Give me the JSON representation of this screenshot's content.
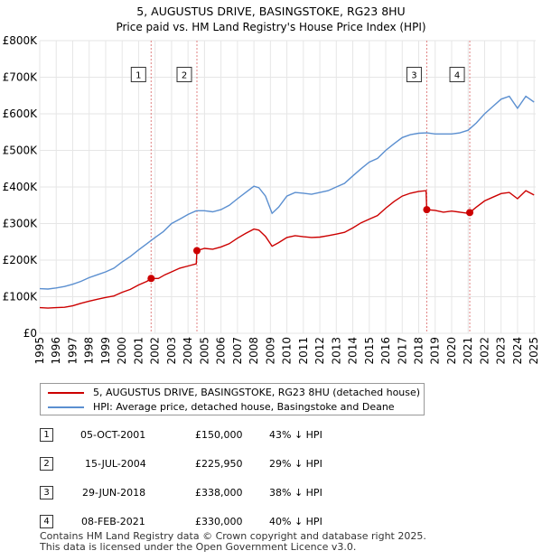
{
  "chart_data": {
    "type": "line",
    "title": "5, AUGUSTUS DRIVE, BASINGSTOKE, RG23 8HU",
    "subtitle": "Price paid vs. HM Land Registry's House Price Index (HPI)",
    "xlim": [
      1995,
      2025.1
    ],
    "ylim": [
      0,
      800000
    ],
    "x_ticks": [
      1995,
      1996,
      1997,
      1998,
      1999,
      2000,
      2001,
      2002,
      2003,
      2004,
      2005,
      2006,
      2007,
      2008,
      2009,
      2010,
      2011,
      2012,
      2013,
      2014,
      2015,
      2016,
      2017,
      2018,
      2019,
      2020,
      2021,
      2022,
      2023,
      2024,
      2025
    ],
    "y_ticks": [
      {
        "value": 0,
        "label": "£0"
      },
      {
        "value": 100000,
        "label": "£100K"
      },
      {
        "value": 200000,
        "label": "£200K"
      },
      {
        "value": 300000,
        "label": "£300K"
      },
      {
        "value": 400000,
        "label": "£400K"
      },
      {
        "value": 500000,
        "label": "£500K"
      },
      {
        "value": 600000,
        "label": "£600K"
      },
      {
        "value": 700000,
        "label": "£700K"
      },
      {
        "value": 800000,
        "label": "£800K"
      }
    ],
    "shaded_periods": [
      [
        2001.76,
        2004.54
      ],
      [
        2018.49,
        2021.1
      ]
    ],
    "series": [
      {
        "name": "5, AUGUSTUS DRIVE, BASINGSTOKE, RG23 8HU (detached house)",
        "color": "#cc0000",
        "points": [
          [
            1995.0,
            70000
          ],
          [
            1995.5,
            69000
          ],
          [
            1996.0,
            70000
          ],
          [
            1996.5,
            71000
          ],
          [
            1997.0,
            75000
          ],
          [
            1997.5,
            82000
          ],
          [
            1998.0,
            88000
          ],
          [
            1998.5,
            93000
          ],
          [
            1999.0,
            98000
          ],
          [
            1999.5,
            102000
          ],
          [
            2000.0,
            112000
          ],
          [
            2000.5,
            120000
          ],
          [
            2001.0,
            132000
          ],
          [
            2001.5,
            142000
          ],
          [
            2001.76,
            150000
          ],
          [
            2002.2,
            150000
          ],
          [
            2002.6,
            160000
          ],
          [
            2003.0,
            168000
          ],
          [
            2003.5,
            178000
          ],
          [
            2004.0,
            184000
          ],
          [
            2004.5,
            190000
          ],
          [
            2004.54,
            225950
          ],
          [
            2005.0,
            232000
          ],
          [
            2005.5,
            230000
          ],
          [
            2006.0,
            236000
          ],
          [
            2006.5,
            245000
          ],
          [
            2007.0,
            260000
          ],
          [
            2007.5,
            273000
          ],
          [
            2008.0,
            285000
          ],
          [
            2008.3,
            282000
          ],
          [
            2008.7,
            265000
          ],
          [
            2009.1,
            238000
          ],
          [
            2009.5,
            248000
          ],
          [
            2010.0,
            262000
          ],
          [
            2010.5,
            267000
          ],
          [
            2011.0,
            264000
          ],
          [
            2011.5,
            262000
          ],
          [
            2012.0,
            263000
          ],
          [
            2012.5,
            267000
          ],
          [
            2013.0,
            271000
          ],
          [
            2013.5,
            276000
          ],
          [
            2014.0,
            288000
          ],
          [
            2014.5,
            302000
          ],
          [
            2015.0,
            312000
          ],
          [
            2015.5,
            322000
          ],
          [
            2016.0,
            342000
          ],
          [
            2016.5,
            360000
          ],
          [
            2017.0,
            375000
          ],
          [
            2017.5,
            383000
          ],
          [
            2018.0,
            388000
          ],
          [
            2018.45,
            390000
          ],
          [
            2018.49,
            338000
          ],
          [
            2019.0,
            336000
          ],
          [
            2019.5,
            331000
          ],
          [
            2020.0,
            334000
          ],
          [
            2020.5,
            331000
          ],
          [
            2021.0,
            328000
          ],
          [
            2021.1,
            330000
          ],
          [
            2021.5,
            345000
          ],
          [
            2022.0,
            362000
          ],
          [
            2022.5,
            372000
          ],
          [
            2023.0,
            382000
          ],
          [
            2023.5,
            385000
          ],
          [
            2024.0,
            368000
          ],
          [
            2024.5,
            390000
          ],
          [
            2025.0,
            378000
          ]
        ]
      },
      {
        "name": "HPI: Average price, detached house, Basingstoke and Deane",
        "color": "#5b8fd0",
        "points": [
          [
            1995.0,
            122000
          ],
          [
            1995.5,
            121000
          ],
          [
            1996.0,
            124000
          ],
          [
            1996.5,
            128000
          ],
          [
            1997.0,
            134000
          ],
          [
            1997.5,
            142000
          ],
          [
            1998.0,
            152000
          ],
          [
            1998.5,
            160000
          ],
          [
            1999.0,
            168000
          ],
          [
            1999.5,
            178000
          ],
          [
            2000.0,
            195000
          ],
          [
            2000.5,
            210000
          ],
          [
            2001.0,
            228000
          ],
          [
            2001.5,
            245000
          ],
          [
            2002.0,
            262000
          ],
          [
            2002.5,
            278000
          ],
          [
            2003.0,
            300000
          ],
          [
            2003.5,
            312000
          ],
          [
            2004.0,
            325000
          ],
          [
            2004.5,
            335000
          ],
          [
            2005.0,
            335000
          ],
          [
            2005.5,
            332000
          ],
          [
            2006.0,
            338000
          ],
          [
            2006.5,
            350000
          ],
          [
            2007.0,
            368000
          ],
          [
            2007.5,
            385000
          ],
          [
            2008.0,
            402000
          ],
          [
            2008.3,
            398000
          ],
          [
            2008.7,
            375000
          ],
          [
            2009.1,
            328000
          ],
          [
            2009.5,
            345000
          ],
          [
            2010.0,
            375000
          ],
          [
            2010.5,
            385000
          ],
          [
            2011.0,
            383000
          ],
          [
            2011.5,
            380000
          ],
          [
            2012.0,
            385000
          ],
          [
            2012.5,
            390000
          ],
          [
            2013.0,
            400000
          ],
          [
            2013.5,
            410000
          ],
          [
            2014.0,
            430000
          ],
          [
            2014.5,
            450000
          ],
          [
            2015.0,
            468000
          ],
          [
            2015.5,
            478000
          ],
          [
            2016.0,
            500000
          ],
          [
            2016.5,
            518000
          ],
          [
            2017.0,
            535000
          ],
          [
            2017.5,
            543000
          ],
          [
            2018.0,
            547000
          ],
          [
            2018.5,
            548000
          ],
          [
            2019.0,
            545000
          ],
          [
            2019.5,
            545000
          ],
          [
            2020.0,
            545000
          ],
          [
            2020.5,
            548000
          ],
          [
            2021.0,
            555000
          ],
          [
            2021.5,
            575000
          ],
          [
            2022.0,
            600000
          ],
          [
            2022.5,
            620000
          ],
          [
            2023.0,
            640000
          ],
          [
            2023.5,
            648000
          ],
          [
            2024.0,
            615000
          ],
          [
            2024.5,
            648000
          ],
          [
            2025.0,
            632000
          ]
        ]
      }
    ],
    "sales": [
      {
        "label": "1",
        "date": "05-OCT-2001",
        "x": 2001.76,
        "price": 150000,
        "price_text": "£150,000",
        "hpi_text": "43% ↓ HPI"
      },
      {
        "label": "2",
        "date": "15-JUL-2004",
        "x": 2004.54,
        "price": 225950,
        "price_text": "£225,950",
        "hpi_text": "29% ↓ HPI"
      },
      {
        "label": "3",
        "date": "29-JUN-2018",
        "x": 2018.49,
        "price": 338000,
        "price_text": "£338,000",
        "hpi_text": "38% ↓ HPI"
      },
      {
        "label": "4",
        "date": "08-FEB-2021",
        "x": 2021.1,
        "price": 330000,
        "price_text": "£330,000",
        "hpi_text": "40% ↓ HPI"
      }
    ],
    "marker_labels_y": 700000
  },
  "legend": {
    "property_label": "5, AUGUSTUS DRIVE, BASINGSTOKE, RG23 8HU (detached house)",
    "hpi_label": "HPI: Average price, detached house, Basingstoke and Deane",
    "property_color": "#cc0000",
    "hpi_color": "#5b8fd0"
  },
  "footer": {
    "line1": "Contains HM Land Registry data © Crown copyright and database right 2025.",
    "line2": "This data is licensed under the Open Government Licence v3.0."
  }
}
